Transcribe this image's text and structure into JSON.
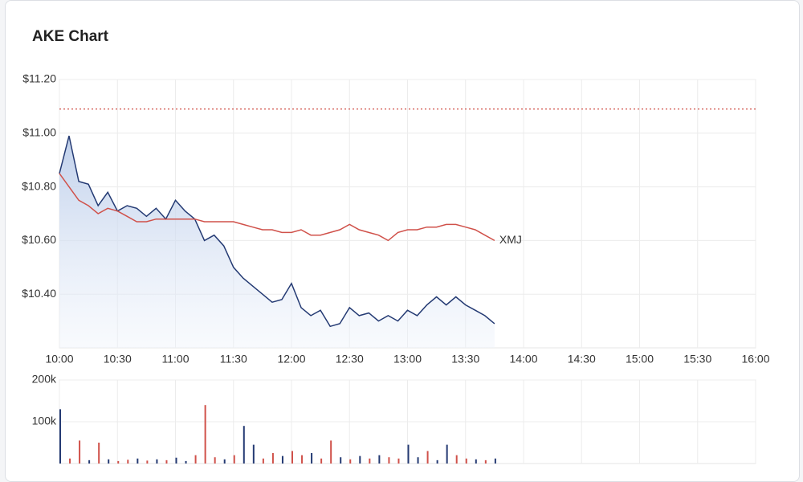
{
  "chart_data": [
    {
      "type": "line",
      "title": "AKE Chart",
      "x": [
        "10:00",
        "10:05",
        "10:10",
        "10:15",
        "10:20",
        "10:25",
        "10:30",
        "10:35",
        "10:40",
        "10:45",
        "10:50",
        "10:55",
        "11:00",
        "11:05",
        "11:10",
        "11:15",
        "11:20",
        "11:25",
        "11:30",
        "11:35",
        "11:40",
        "11:45",
        "11:50",
        "11:55",
        "12:00",
        "12:05",
        "12:10",
        "12:15",
        "12:20",
        "12:25",
        "12:30",
        "12:35",
        "12:40",
        "12:45",
        "12:50",
        "12:55",
        "13:00",
        "13:05",
        "13:10",
        "13:15",
        "13:20",
        "13:25",
        "13:30",
        "13:35",
        "13:40",
        "13:45"
      ],
      "series": [
        {
          "color": "#243a73",
          "fill": true,
          "values": [
            10.85,
            10.99,
            10.82,
            10.81,
            10.73,
            10.78,
            10.71,
            10.73,
            10.72,
            10.69,
            10.72,
            10.68,
            10.75,
            10.71,
            10.68,
            10.6,
            10.62,
            10.58,
            10.5,
            10.46,
            10.43,
            10.4,
            10.37,
            10.38,
            10.44,
            10.35,
            10.32,
            10.34,
            10.28,
            10.29,
            10.35,
            10.32,
            10.33,
            10.3,
            10.32,
            10.3,
            10.34,
            10.32,
            10.36,
            10.39,
            10.36,
            10.39,
            10.36,
            10.34,
            10.32,
            10.29
          ]
        },
        {
          "name": "XMJ",
          "color": "#d0514a",
          "values": [
            10.85,
            10.8,
            10.75,
            10.73,
            10.7,
            10.72,
            10.71,
            10.69,
            10.67,
            10.67,
            10.68,
            10.68,
            10.68,
            10.68,
            10.68,
            10.67,
            10.67,
            10.67,
            10.67,
            10.66,
            10.65,
            10.64,
            10.64,
            10.63,
            10.63,
            10.64,
            10.62,
            10.62,
            10.63,
            10.64,
            10.66,
            10.64,
            10.63,
            10.62,
            10.6,
            10.63,
            10.64,
            10.64,
            10.65,
            10.65,
            10.66,
            10.66,
            10.65,
            10.64,
            10.62,
            10.6
          ]
        }
      ],
      "reference_line": {
        "value": 11.09,
        "color": "#d0514a"
      },
      "xlim": [
        "10:00",
        "16:00"
      ],
      "xticks": [
        "10:00",
        "10:30",
        "11:00",
        "11:30",
        "12:00",
        "12:30",
        "13:00",
        "13:30",
        "14:00",
        "14:30",
        "15:00",
        "15:30",
        "16:00"
      ],
      "ylim": [
        10.2,
        11.2
      ],
      "yticks": [
        {
          "value": 10.4,
          "label": "$10.40"
        },
        {
          "value": 10.6,
          "label": "$10.60"
        },
        {
          "value": 10.8,
          "label": "$10.80"
        },
        {
          "value": 11.0,
          "label": "$11.00"
        },
        {
          "value": 11.2,
          "label": "$11.20"
        }
      ],
      "grid": true
    },
    {
      "type": "bar",
      "x": [
        "10:00",
        "10:05",
        "10:10",
        "10:15",
        "10:20",
        "10:25",
        "10:30",
        "10:35",
        "10:40",
        "10:45",
        "10:50",
        "10:55",
        "11:00",
        "11:05",
        "11:10",
        "11:15",
        "11:20",
        "11:25",
        "11:30",
        "11:35",
        "11:40",
        "11:45",
        "11:50",
        "11:55",
        "12:00",
        "12:05",
        "12:10",
        "12:15",
        "12:20",
        "12:25",
        "12:30",
        "12:35",
        "12:40",
        "12:45",
        "12:50",
        "12:55",
        "13:00",
        "13:05",
        "13:10",
        "13:15",
        "13:20",
        "13:25",
        "13:30",
        "13:35",
        "13:40",
        "13:45"
      ],
      "values": [
        130000,
        12000,
        55000,
        8000,
        50000,
        10000,
        6000,
        9000,
        12000,
        7000,
        10000,
        8000,
        14000,
        6000,
        20000,
        140000,
        15000,
        10000,
        20000,
        90000,
        45000,
        12000,
        25000,
        18000,
        30000,
        20000,
        25000,
        12000,
        55000,
        15000,
        10000,
        18000,
        12000,
        20000,
        15000,
        12000,
        45000,
        15000,
        30000,
        8000,
        45000,
        20000,
        12000,
        10000,
        8000,
        12000
      ],
      "colors": [
        "#243a73",
        "#d0514a",
        "#d0514a",
        "#243a73",
        "#d0514a",
        "#243a73",
        "#d0514a",
        "#d0514a",
        "#243a73",
        "#d0514a",
        "#243a73",
        "#d0514a",
        "#243a73",
        "#243a73",
        "#d0514a",
        "#d0514a",
        "#d0514a",
        "#243a73",
        "#d0514a",
        "#243a73",
        "#243a73",
        "#d0514a",
        "#d0514a",
        "#243a73",
        "#d0514a",
        "#d0514a",
        "#243a73",
        "#d0514a",
        "#d0514a",
        "#243a73",
        "#d0514a",
        "#243a73",
        "#d0514a",
        "#243a73",
        "#d0514a",
        "#d0514a",
        "#243a73",
        "#243a73",
        "#d0514a",
        "#243a73",
        "#243a73",
        "#d0514a",
        "#d0514a",
        "#243a73",
        "#d0514a",
        "#243a73"
      ],
      "xlim": [
        "10:00",
        "16:00"
      ],
      "ylim": [
        0,
        200000
      ],
      "yticks": [
        {
          "value": 100000,
          "label": "100k"
        },
        {
          "value": 200000,
          "label": "200k"
        }
      ],
      "grid": true
    }
  ]
}
